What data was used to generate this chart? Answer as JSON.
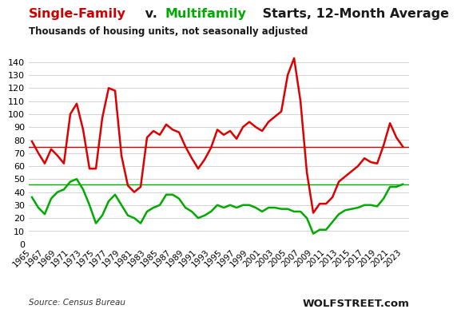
{
  "title_parts": [
    {
      "text": "Single-Family",
      "color": "#cc0000"
    },
    {
      "text": " v. ",
      "color": "#1a1a1a"
    },
    {
      "text": "Multifamily",
      "color": "#00aa00"
    },
    {
      "text": " Starts, 12-Month Average",
      "color": "#1a1a1a"
    }
  ],
  "subtitle": "Thousands of housing units, not seasonally adjusted",
  "source_text": "Source: Census Bureau",
  "watermark": "WOLFSTREET.com",
  "single_family_color": "#dd0000",
  "multi_family_color": "#00aa00",
  "sf_hline_color": "#cc0000",
  "mf_hline_color": "#00aa00",
  "sf_hline_value": 74.5,
  "mf_hline_value": 46.0,
  "ylim": [
    0,
    150
  ],
  "yticks": [
    0,
    10,
    20,
    30,
    40,
    50,
    60,
    70,
    80,
    90,
    100,
    110,
    120,
    130,
    140
  ],
  "years": [
    1965,
    1966,
    1967,
    1968,
    1969,
    1970,
    1971,
    1972,
    1973,
    1974,
    1975,
    1976,
    1977,
    1978,
    1979,
    1980,
    1981,
    1982,
    1983,
    1984,
    1985,
    1986,
    1987,
    1988,
    1989,
    1990,
    1991,
    1992,
    1993,
    1994,
    1995,
    1996,
    1997,
    1998,
    1999,
    2000,
    2001,
    2002,
    2003,
    2004,
    2005,
    2006,
    2007,
    2008,
    2009,
    2010,
    2011,
    2012,
    2013,
    2014,
    2015,
    2016,
    2017,
    2018,
    2019,
    2020,
    2021,
    2022,
    2023
  ],
  "single_family": [
    79,
    70,
    62,
    73,
    68,
    62,
    100,
    108,
    88,
    58,
    58,
    97,
    120,
    118,
    68,
    45,
    40,
    44,
    82,
    87,
    84,
    92,
    88,
    86,
    75,
    66,
    58,
    65,
    74,
    88,
    84,
    87,
    81,
    90,
    94,
    90,
    87,
    94,
    98,
    102,
    130,
    143,
    110,
    55,
    24,
    31,
    31,
    36,
    48,
    52,
    56,
    60,
    66,
    63,
    62,
    76,
    93,
    82,
    75
  ],
  "multi_family": [
    36,
    28,
    23,
    35,
    40,
    42,
    48,
    50,
    42,
    30,
    16,
    22,
    33,
    38,
    30,
    22,
    20,
    16,
    25,
    28,
    30,
    38,
    38,
    35,
    28,
    25,
    20,
    22,
    25,
    30,
    28,
    30,
    28,
    30,
    30,
    28,
    25,
    28,
    28,
    27,
    27,
    25,
    25,
    20,
    8,
    11,
    11,
    17,
    23,
    26,
    27,
    28,
    30,
    30,
    29,
    35,
    44,
    44,
    46
  ]
}
